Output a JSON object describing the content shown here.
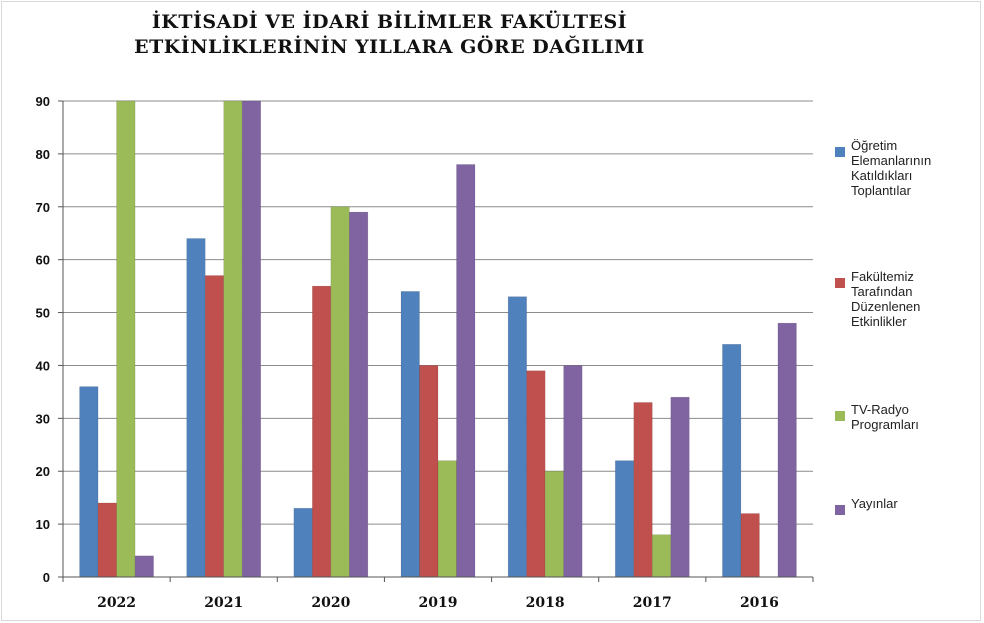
{
  "chart_data": {
    "type": "bar",
    "title": "İKTİSADİ VE İDARİ BİLİMLER FAKÜLTESİ",
    "subtitle": "ETKİNLİKLERİNİN YILLARA GÖRE DAĞILIMI",
    "categories": [
      "2022",
      "2021",
      "2020",
      "2019",
      "2018",
      "2017",
      "2016"
    ],
    "ylim": [
      0,
      90
    ],
    "yticks": [
      0,
      10,
      20,
      30,
      40,
      50,
      60,
      70,
      80,
      90
    ],
    "grid": true,
    "legend_position": "right",
    "series": [
      {
        "name": "Öğretim Elemanlarının Katıldıkları Toplantılar",
        "color": "#4f81bd",
        "values": [
          36,
          64,
          13,
          54,
          53,
          22,
          44
        ]
      },
      {
        "name": "Fakültemiz Tarafından Düzenlenen Etkinlikler",
        "color": "#c0504d",
        "values": [
          14,
          57,
          55,
          40,
          39,
          33,
          12
        ]
      },
      {
        "name": "TV-Radyo Programları",
        "color": "#9bbb59",
        "values": [
          90,
          90,
          70,
          22,
          20,
          8,
          0
        ]
      },
      {
        "name": "Yayınlar",
        "color": "#8064a2",
        "values": [
          4,
          90,
          69,
          78,
          40,
          34,
          48
        ]
      }
    ]
  },
  "legend": {
    "items": [
      {
        "label": "Öğretim\nElemanlarının\nKatıldıkları\nToplantılar",
        "color": "#4f81bd"
      },
      {
        "label": "Fakültemiz\nTarafından\nDüzenlenen\nEtkinlikler",
        "color": "#c0504d"
      },
      {
        "label": "TV-Radyo\nProgramları",
        "color": "#9bbb59"
      },
      {
        "label": "Yayınlar",
        "color": "#8064a2"
      }
    ]
  }
}
